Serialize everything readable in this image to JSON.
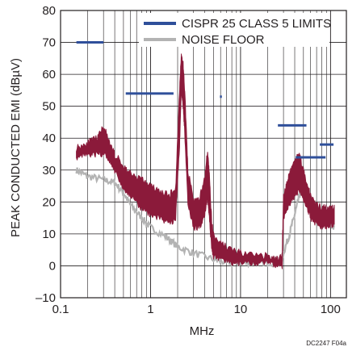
{
  "chart_data": {
    "type": "line",
    "title": "",
    "xlabel": "MHz",
    "ylabel": "PEAK CONDUCTED EMI (dBµV)",
    "x_scale": "log",
    "xlim": [
      0.1,
      150
    ],
    "ylim": [
      -10,
      80
    ],
    "x_ticks": [
      0.1,
      1,
      10,
      100
    ],
    "x_tick_labels": [
      "0.1",
      "1",
      "10",
      "100"
    ],
    "y_ticks": [
      -10,
      0,
      10,
      20,
      30,
      40,
      50,
      60,
      70,
      80
    ],
    "y_tick_labels": [
      "–10",
      "0",
      "10",
      "20",
      "30",
      "40",
      "50",
      "60",
      "70",
      "80"
    ],
    "grid": true,
    "legend_position": "top-right",
    "figure_id": "DC2247 F04a",
    "colors": {
      "limits": "#2f4f9a",
      "emi": "#8b1a3a",
      "noise": "#b3b3b3",
      "grid": "#231f20"
    },
    "series": [
      {
        "name": "CISPR 25 CLASS 5 LIMITS",
        "kind": "limit_segments",
        "segments": [
          {
            "x": [
              0.15,
              0.3
            ],
            "y": 70
          },
          {
            "x": [
              0.53,
              1.8
            ],
            "y": 54
          },
          {
            "x": [
              5.9,
              6.2
            ],
            "y": 53
          },
          {
            "x": [
              26,
              54
            ],
            "y": 44
          },
          {
            "x": [
              41,
              88
            ],
            "y": 34
          },
          {
            "x": [
              76,
              108
            ],
            "y": 38
          }
        ]
      },
      {
        "name": "NOISE FLOOR",
        "kind": "line",
        "x": [
          0.15,
          0.2,
          0.3,
          0.4,
          0.5,
          0.6,
          0.8,
          1,
          1.5,
          2,
          3,
          5,
          7,
          10,
          15,
          20,
          28,
          30,
          35,
          40,
          45,
          50,
          60,
          70,
          80,
          100,
          110
        ],
        "y": [
          30,
          28,
          27,
          26,
          23,
          19,
          15,
          12,
          9,
          6,
          4,
          2,
          1,
          1,
          1,
          1,
          1,
          4,
          10,
          16,
          22,
          25,
          21,
          18,
          16,
          13,
          12
        ]
      },
      {
        "name": "",
        "kind": "band",
        "x": [
          0.15,
          0.18,
          0.22,
          0.26,
          0.3,
          0.35,
          0.4,
          0.5,
          0.6,
          0.8,
          1,
          1.3,
          1.6,
          1.9,
          2.1,
          2.2,
          2.3,
          2.4,
          2.6,
          3,
          3.5,
          4,
          4.3,
          4.5,
          4.8,
          5,
          6,
          8,
          10,
          15,
          20,
          25,
          29,
          30,
          33,
          36,
          40,
          45,
          50,
          55,
          60,
          70,
          80,
          90,
          100,
          110
        ],
        "upper": [
          37,
          38,
          39,
          40,
          44,
          38,
          35,
          31,
          29,
          27,
          25,
          23,
          22,
          24,
          55,
          66,
          63,
          55,
          30,
          20,
          21,
          27,
          36,
          28,
          13,
          10,
          7,
          5,
          4,
          3,
          3,
          2,
          3,
          22,
          26,
          30,
          33,
          35,
          30,
          25,
          22,
          19,
          18,
          18,
          18,
          19
        ],
        "lower": [
          34,
          35,
          35,
          35,
          35,
          33,
          30,
          24,
          22,
          18,
          16,
          15,
          13,
          15,
          38,
          55,
          50,
          42,
          20,
          12,
          12,
          16,
          22,
          15,
          5,
          3,
          2,
          1,
          1,
          1,
          1,
          0,
          0,
          15,
          18,
          20,
          22,
          24,
          21,
          18,
          15,
          13,
          12,
          12,
          13,
          13
        ]
      }
    ]
  }
}
